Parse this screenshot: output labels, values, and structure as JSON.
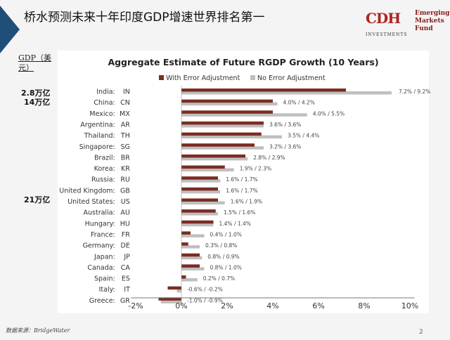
{
  "header": {
    "title": "桥水预测未来十年印度GDP增速世界排名第一"
  },
  "logo": {
    "mark": "CDH",
    "line1": "Emerging",
    "line2": "Markets",
    "line3": "Fund",
    "sub": "INVESTMENTS"
  },
  "side": {
    "gdp_label": "GDP（美元）",
    "india_gdp": "2.8万亿",
    "china_gdp": "14万亿",
    "us_gdp": "21万亿"
  },
  "footer": {
    "source": "数据来源：BridgeWater",
    "page": "2"
  },
  "colors": {
    "with": "#7b2c22",
    "without": "#bfbfbf"
  },
  "chart_data": {
    "type": "bar",
    "orientation": "horizontal",
    "title": "Aggregate Estimate of Future RGDP Growth (10 Years)",
    "legend_position": "top",
    "xlim": [
      -2,
      10
    ],
    "xticks": [
      "-2%",
      "0%",
      "2%",
      "4%",
      "6%",
      "8%",
      "10%"
    ],
    "categories": [
      "India:  IN",
      "China:  CN",
      "Mexico:  MX",
      "Argentina:  AR",
      "Thailand:  TH",
      "Singapore:  SG",
      "Brazil:  BR",
      "Korea:  KR",
      "Russia:  RU",
      "United Kingdom:  GB",
      "United States:  US",
      "Australia:  AU",
      "Hungary:  HU",
      "France:  FR",
      "Germany:  DE",
      "Japan:  JP",
      "Canada:  CA",
      "Spain:  ES",
      "Italy:  IT",
      "Greece:  GR"
    ],
    "series": [
      {
        "name": "With Error Adjustment",
        "values": [
          7.2,
          4.0,
          4.0,
          3.6,
          3.5,
          3.2,
          2.8,
          1.9,
          1.6,
          1.6,
          1.6,
          1.5,
          1.4,
          0.4,
          0.3,
          0.8,
          0.8,
          0.2,
          -0.6,
          -1.0
        ]
      },
      {
        "name": "No Error Adjustment",
        "values": [
          9.2,
          4.2,
          5.5,
          3.6,
          4.4,
          3.6,
          2.9,
          2.3,
          1.7,
          1.7,
          1.9,
          1.6,
          1.4,
          1.0,
          0.8,
          0.9,
          1.0,
          0.7,
          -0.2,
          -0.9
        ]
      }
    ],
    "data_labels": [
      "7.2% / 9.2%",
      "4.0% / 4.2%",
      "4.0% / 5.5%",
      "3.6% / 3.6%",
      "3.5% / 4.4%",
      "3.2% / 3.6%",
      "2.8% / 2.9%",
      "1.9% / 2.3%",
      "1.6% / 1.7%",
      "1.6% / 1.7%",
      "1.6% / 1.9%",
      "1.5% / 1.6%",
      "1.4% / 1.4%",
      "0.4% / 1.0%",
      "0.3% / 0.8%",
      "0.8% / 0.9%",
      "0.8% / 1.0%",
      "0.2% / 0.7%",
      "-0.6% / -0.2%",
      "-1.0% / -0.9%"
    ]
  }
}
